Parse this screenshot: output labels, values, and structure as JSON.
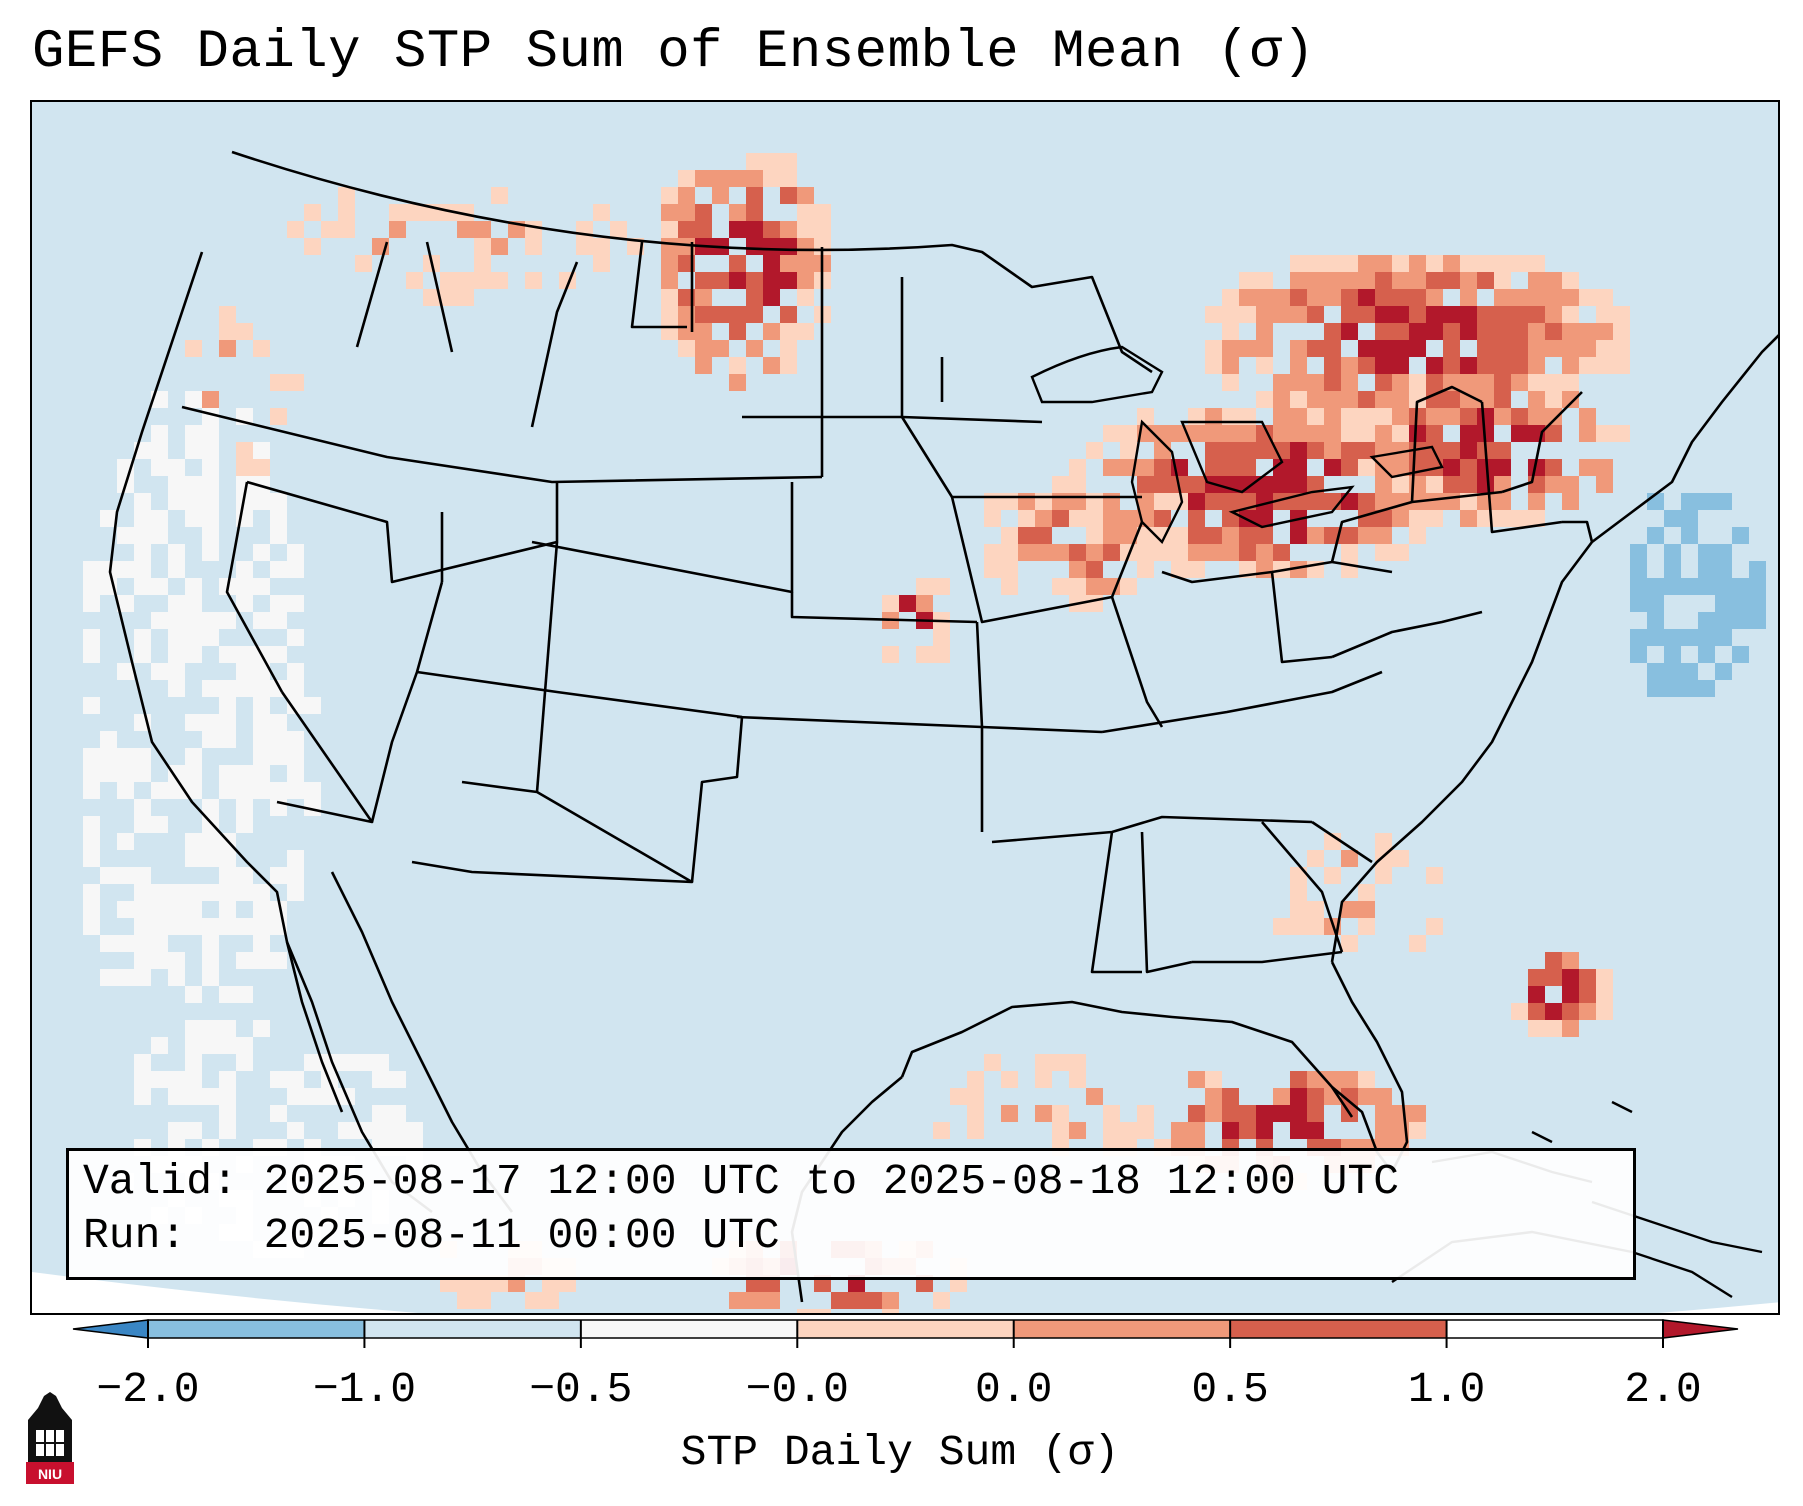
{
  "title": "GEFS Daily STP Sum of Ensemble Mean (σ)",
  "info": {
    "valid_line": "Valid: 2025-08-17 12:00 UTC to 2025-08-18 12:00 UTC",
    "run_line": "Run:   2025-08-11 00:00 UTC"
  },
  "colorbar": {
    "label": "STP Daily Sum (σ)",
    "ticks": [
      "−2.0",
      "−1.0",
      "−0.5",
      "−0.0",
      "0.0",
      "0.5",
      "1.0",
      "2.0"
    ],
    "colors": [
      "#3a86c4",
      "#88bfdf",
      "#d1e5f0",
      "#f7f7f7",
      "#fdd5c0",
      "#f0997a",
      "#d6604d",
      "#b2182b"
    ],
    "extend": "both"
  },
  "map": {
    "projection": "Lambert Conformal CONUS",
    "background_color": "#d1e5f0",
    "colors": {
      "hi": "#b2182b",
      "mid_hi": "#d6604d",
      "mid": "#f0997a",
      "low": "#fdd5c0",
      "neg_low": "#88bfdf",
      "neutral": "#f7f7f7"
    }
  },
  "logo": {
    "text": "NIU"
  }
}
